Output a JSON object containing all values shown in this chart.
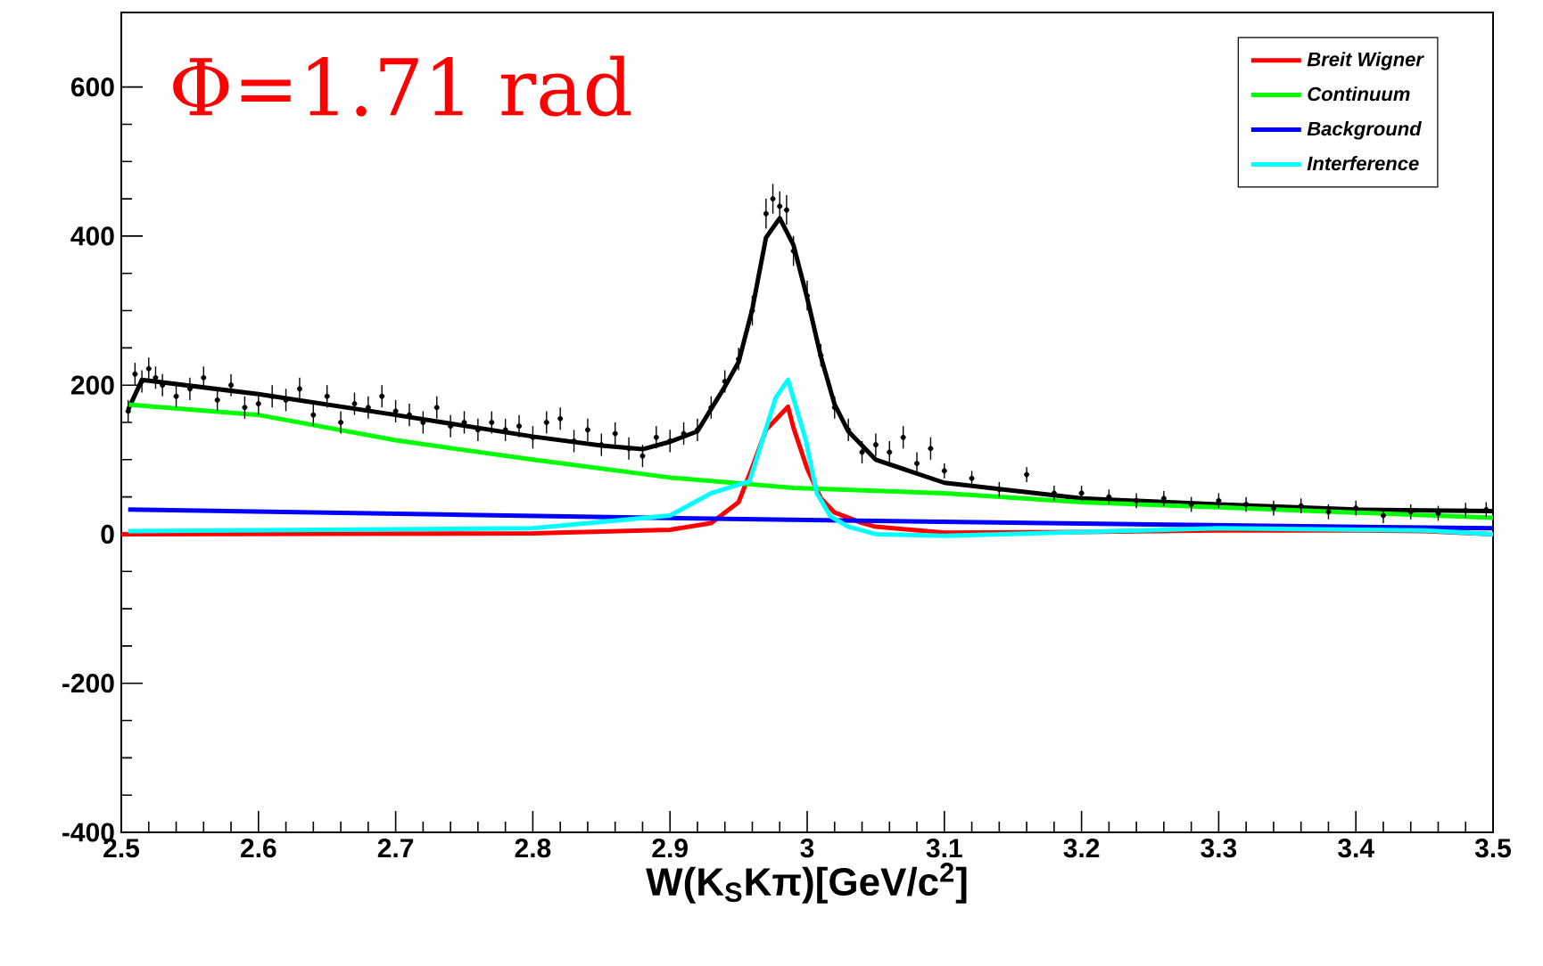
{
  "chart_data": {
    "type": "line",
    "xlabel": "W(K$_{S}$Kπ)[GeV/c$^{2}$]",
    "annotations": [
      "Φ=1.71 rad"
    ],
    "xlim": [
      2.5,
      3.5
    ],
    "ylim": [
      -400,
      700
    ],
    "xticks": [
      2.5,
      2.6,
      2.7,
      2.8,
      2.9,
      3,
      3.1,
      3.2,
      3.3,
      3.4,
      3.5
    ],
    "yticks": [
      -400,
      -200,
      0,
      200,
      400,
      600
    ],
    "legend": "top right",
    "series": [
      {
        "type": "scatter",
        "marker": "circle",
        "color": "#000000",
        "x": [
          2.505,
          2.51,
          2.515,
          2.52,
          2.525,
          2.53,
          2.54,
          2.55,
          2.56,
          2.57,
          2.58,
          2.59,
          2.6,
          2.61,
          2.62,
          2.63,
          2.64,
          2.65,
          2.66,
          2.67,
          2.68,
          2.69,
          2.7,
          2.71,
          2.72,
          2.73,
          2.74,
          2.75,
          2.76,
          2.77,
          2.78,
          2.79,
          2.8,
          2.81,
          2.82,
          2.83,
          2.84,
          2.85,
          2.86,
          2.87,
          2.88,
          2.89,
          2.9,
          2.91,
          2.92,
          2.93,
          2.94,
          2.95,
          2.96,
          2.97,
          2.975,
          2.98,
          2.985,
          2.99,
          3.0,
          3.01,
          3.02,
          3.03,
          3.04,
          3.05,
          3.06,
          3.07,
          3.08,
          3.09,
          3.1,
          3.12,
          3.14,
          3.16,
          3.18,
          3.2,
          3.22,
          3.24,
          3.26,
          3.28,
          3.3,
          3.32,
          3.34,
          3.36,
          3.38,
          3.4,
          3.42,
          3.44,
          3.46,
          3.48,
          3.495
        ],
        "values": [
          165,
          215,
          205,
          222,
          210,
          200,
          185,
          195,
          210,
          180,
          200,
          170,
          175,
          185,
          180,
          195,
          160,
          185,
          150,
          175,
          170,
          185,
          165,
          160,
          150,
          170,
          145,
          150,
          140,
          150,
          140,
          145,
          130,
          150,
          155,
          125,
          140,
          120,
          135,
          115,
          105,
          130,
          125,
          135,
          140,
          170,
          205,
          235,
          300,
          430,
          450,
          440,
          435,
          380,
          320,
          240,
          170,
          140,
          110,
          120,
          110,
          130,
          95,
          115,
          85,
          75,
          60,
          80,
          55,
          55,
          50,
          45,
          48,
          40,
          45,
          40,
          35,
          38,
          30,
          35,
          25,
          30,
          28,
          32,
          33
        ],
        "errors": [
          15,
          15,
          15,
          15,
          15,
          15,
          15,
          15,
          15,
          15,
          15,
          15,
          15,
          15,
          15,
          15,
          15,
          15,
          15,
          15,
          15,
          15,
          15,
          15,
          15,
          15,
          15,
          15,
          15,
          15,
          15,
          15,
          15,
          15,
          15,
          15,
          15,
          15,
          15,
          15,
          15,
          15,
          15,
          15,
          15,
          15,
          15,
          15,
          20,
          20,
          20,
          20,
          20,
          20,
          20,
          15,
          15,
          15,
          15,
          15,
          15,
          15,
          15,
          15,
          10,
          10,
          10,
          10,
          10,
          10,
          10,
          10,
          10,
          10,
          10,
          10,
          10,
          10,
          10,
          10,
          10,
          10,
          10,
          10,
          10
        ]
      },
      {
        "type": "line",
        "color": "#000000",
        "x": [
          2.505,
          2.515,
          2.6,
          2.7,
          2.8,
          2.85,
          2.88,
          2.9,
          2.92,
          2.94,
          2.95,
          2.96,
          2.97,
          2.98,
          2.99,
          3.0,
          3.01,
          3.02,
          3.03,
          3.05,
          3.1,
          3.2,
          3.3,
          3.4,
          3.5
        ],
        "values": [
          167,
          207,
          188,
          160,
          131,
          119,
          114,
          124,
          138,
          198,
          231,
          302,
          398,
          424,
          388,
          317,
          238,
          174,
          138,
          100,
          69,
          48,
          40,
          33,
          31
        ]
      },
      {
        "name": "Breit Wigner",
        "color": "#ff0000",
        "x": [
          2.5,
          2.8,
          2.9,
          2.93,
          2.95,
          2.96,
          2.97,
          2.986,
          2.99,
          3.0,
          3.01,
          3.02,
          3.04,
          3.05,
          3.1,
          3.2,
          3.3,
          3.4,
          3.45,
          3.5
        ],
        "values": [
          0,
          1,
          6,
          15,
          43,
          90,
          140,
          171,
          143,
          88,
          48,
          29,
          15,
          10,
          2,
          3,
          5,
          5,
          4,
          0
        ]
      },
      {
        "name": "Continuum",
        "color": "#00ff00",
        "x": [
          2.505,
          2.6,
          2.7,
          2.8,
          2.9,
          2.99,
          3.1,
          3.2,
          3.3,
          3.4,
          3.5
        ],
        "values": [
          174,
          160,
          126,
          100,
          76,
          62,
          55,
          43,
          36,
          29,
          22
        ]
      },
      {
        "name": "Background",
        "color": "#0000ff",
        "x": [
          2.505,
          2.75,
          3.0,
          3.25,
          3.5
        ],
        "values": [
          33,
          26,
          19,
          13,
          8
        ]
      },
      {
        "name": "Interference",
        "color": "#00ffff",
        "x": [
          2.505,
          2.8,
          2.9,
          2.93,
          2.958,
          2.977,
          2.986,
          2.999,
          3.007,
          3.017,
          3.03,
          3.05,
          3.1,
          3.2,
          3.3,
          3.45,
          3.5
        ],
        "values": [
          4,
          8,
          25,
          55,
          71,
          183,
          207,
          126,
          55,
          24,
          10,
          0,
          -2,
          3,
          8,
          5,
          0
        ]
      }
    ]
  }
}
